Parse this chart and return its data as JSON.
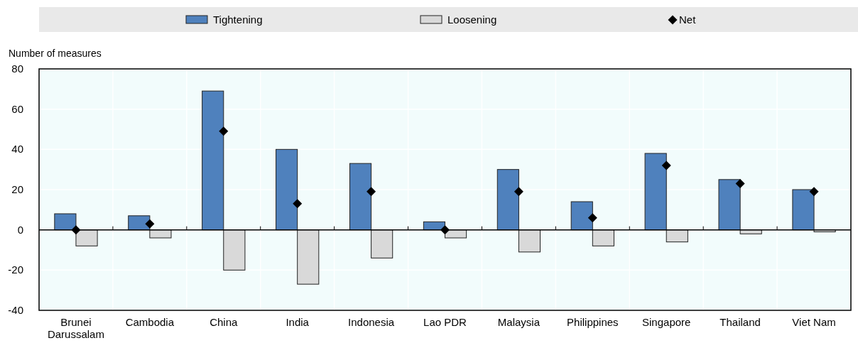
{
  "chart_data": {
    "type": "bar",
    "ylabel": "Number of measures",
    "categories": [
      "Brunei Darussalam",
      "Cambodia",
      "China",
      "India",
      "Indonesia",
      "Lao PDR",
      "Malaysia",
      "Philippines",
      "Singapore",
      "Thailand",
      "Viet Nam"
    ],
    "series": [
      {
        "name": "Tightening",
        "color": "#4f81bd",
        "values": [
          8,
          7,
          69,
          40,
          33,
          4,
          30,
          14,
          38,
          25,
          20
        ]
      },
      {
        "name": "Loosening",
        "color": "#d9d9d9",
        "values": [
          -8,
          -4,
          -20,
          -27,
          -14,
          -4,
          -11,
          -8,
          -6,
          -2,
          -1
        ]
      },
      {
        "name": "Net",
        "type": "scatter",
        "marker": "diamond",
        "color": "#000000",
        "values": [
          0,
          3,
          49,
          13,
          19,
          0,
          19,
          6,
          32,
          23,
          19
        ]
      }
    ],
    "ylim": [
      -40,
      80
    ],
    "yticks": [
      -40,
      -20,
      0,
      20,
      40,
      60,
      80
    ],
    "grid": true,
    "legend": "top"
  }
}
